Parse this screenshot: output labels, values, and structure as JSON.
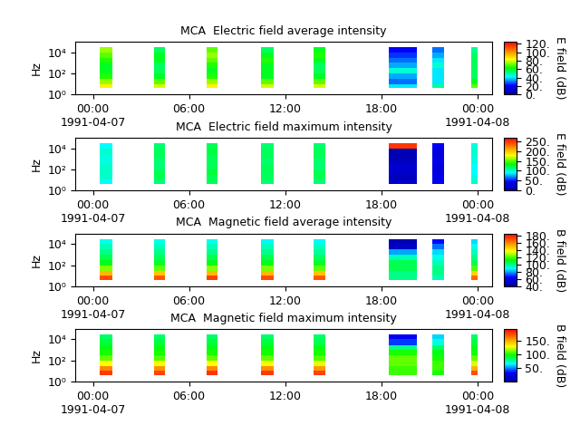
{
  "chart_data": [
    {
      "type": "heatmap",
      "title": "MCA  Electric field average intensity",
      "y_label": "Hz",
      "colorbar_label": "E field (dB)",
      "log": "y",
      "xlim": [
        -1.1,
        24.9
      ],
      "xticks": [
        {
          "value": 0,
          "label": "00:00\n1991-04-07"
        },
        {
          "value": 6,
          "label": "06:00"
        },
        {
          "value": 12,
          "label": "12:00"
        },
        {
          "value": 18,
          "label": "18:00"
        },
        {
          "value": 24,
          "label": "00:00\n1991-04-08"
        }
      ],
      "ylim": [
        1,
        100000
      ],
      "yticks": [
        {
          "value": 1,
          "label": "10⁰"
        },
        {
          "value": 100,
          "label": "10²"
        },
        {
          "value": 10000,
          "label": "10⁴"
        }
      ],
      "time_bands": [
        [
          0.4,
          1.2
        ],
        [
          3.8,
          4.5
        ],
        [
          7.1,
          7.8
        ],
        [
          10.5,
          11.3
        ],
        [
          13.75,
          14.5
        ],
        [
          18.45,
          20.2
        ],
        [
          21.2,
          21.9
        ],
        [
          23.6,
          24.0
        ]
      ],
      "freq_edges": [
        4,
        10,
        30,
        100,
        300,
        1000,
        3000,
        10000,
        30000
      ],
      "cells": [
        [
          85,
          75,
          65,
          60,
          60,
          65,
          70,
          75
        ],
        [
          80,
          70,
          60,
          55,
          55,
          60,
          60,
          55
        ],
        [
          85,
          75,
          65,
          60,
          65,
          70,
          75,
          70
        ],
        [
          80,
          70,
          60,
          60,
          60,
          65,
          60,
          55
        ],
        [
          80,
          70,
          60,
          55,
          55,
          60,
          65,
          60
        ],
        [
          40,
          30,
          35,
          45,
          35,
          30,
          25,
          20
        ],
        [
          50,
          40,
          40,
          40,
          45,
          40,
          35,
          30
        ],
        [
          70,
          60,
          55,
          55,
          55,
          55,
          55,
          50
        ]
      ],
      "color_range": [
        0,
        125
      ],
      "color_ticks": [
        {
          "value": 0,
          "label": "0."
        },
        {
          "value": 20,
          "label": "20."
        },
        {
          "value": 40,
          "label": "40."
        },
        {
          "value": 60,
          "label": "60."
        },
        {
          "value": 80,
          "label": "80."
        },
        {
          "value": 100,
          "label": "100."
        },
        {
          "value": 120,
          "label": "120."
        }
      ]
    },
    {
      "type": "heatmap",
      "title": "MCA  Electric field maximum intensity",
      "y_label": "Hz",
      "colorbar_label": "E field (dB)",
      "log": "y",
      "xlim": [
        -1.1,
        24.9
      ],
      "xticks": [
        {
          "value": 0,
          "label": "00:00\n1991-04-07"
        },
        {
          "value": 6,
          "label": "06:00"
        },
        {
          "value": 12,
          "label": "12:00"
        },
        {
          "value": 18,
          "label": "18:00"
        },
        {
          "value": 24,
          "label": "00:00\n1991-04-08"
        }
      ],
      "ylim": [
        1,
        100000
      ],
      "yticks": [
        {
          "value": 1,
          "label": "10⁰"
        },
        {
          "value": 100,
          "label": "10²"
        },
        {
          "value": 10000,
          "label": "10⁴"
        }
      ],
      "time_bands": [
        [
          0.4,
          1.2
        ],
        [
          3.8,
          4.5
        ],
        [
          7.1,
          7.8
        ],
        [
          10.5,
          11.3
        ],
        [
          13.75,
          14.5
        ],
        [
          18.45,
          20.2
        ],
        [
          21.2,
          21.9
        ],
        [
          23.6,
          24.0
        ]
      ],
      "freq_edges": [
        4,
        10,
        30,
        100,
        300,
        1000,
        3000,
        10000,
        30000
      ],
      "cells": [
        [
          90,
          100,
          100,
          100,
          95,
          95,
          100,
          90
        ],
        [
          115,
          120,
          120,
          115,
          115,
          120,
          120,
          115
        ],
        [
          120,
          120,
          125,
          120,
          120,
          120,
          125,
          120
        ],
        [
          115,
          120,
          120,
          120,
          115,
          120,
          120,
          115
        ],
        [
          115,
          120,
          120,
          115,
          115,
          120,
          120,
          115
        ],
        [
          20,
          15,
          20,
          25,
          15,
          10,
          10,
          250
        ],
        [
          40,
          35,
          30,
          30,
          35,
          30,
          30,
          40
        ],
        [
          100,
          95,
          90,
          90,
          95,
          95,
          100,
          95
        ]
      ],
      "color_range": [
        0,
        270
      ],
      "color_ticks": [
        {
          "value": 0,
          "label": "0."
        },
        {
          "value": 50,
          "label": "50."
        },
        {
          "value": 100,
          "label": "100."
        },
        {
          "value": 150,
          "label": "150."
        },
        {
          "value": 200,
          "label": "200."
        },
        {
          "value": 250,
          "label": "250."
        }
      ]
    },
    {
      "type": "heatmap",
      "title": "MCA  Magnetic field average intensity",
      "y_label": "Hz",
      "colorbar_label": "B field (dB)",
      "log": "y",
      "xlim": [
        -1.1,
        24.9
      ],
      "xticks": [
        {
          "value": 0,
          "label": "00:00\n1991-04-07"
        },
        {
          "value": 6,
          "label": "06:00"
        },
        {
          "value": 12,
          "label": "12:00"
        },
        {
          "value": 18,
          "label": "18:00"
        },
        {
          "value": 24,
          "label": "00:00\n1991-04-08"
        }
      ],
      "ylim": [
        1,
        100000
      ],
      "yticks": [
        {
          "value": 1,
          "label": "10⁰"
        },
        {
          "value": 100,
          "label": "10²"
        },
        {
          "value": 10000,
          "label": "10⁴"
        }
      ],
      "time_bands": [
        [
          0.4,
          1.2
        ],
        [
          3.8,
          4.5
        ],
        [
          7.1,
          7.8
        ],
        [
          10.5,
          11.3
        ],
        [
          13.75,
          14.5
        ],
        [
          18.45,
          20.2
        ],
        [
          21.2,
          21.9
        ],
        [
          23.6,
          24.0
        ]
      ],
      "freq_edges": [
        4,
        10,
        30,
        100,
        300,
        1000,
        3000,
        10000,
        30000
      ],
      "cells": [
        [
          170,
          150,
          125,
          110,
          105,
          100,
          95,
          90
        ],
        [
          168,
          148,
          122,
          108,
          104,
          100,
          95,
          90
        ],
        [
          172,
          150,
          125,
          110,
          105,
          100,
          95,
          90
        ],
        [
          170,
          150,
          124,
          110,
          105,
          100,
          95,
          88
        ],
        [
          168,
          148,
          122,
          108,
          104,
          98,
          94,
          88
        ],
        [
          100,
          100,
          105,
          105,
          95,
          80,
          50,
          45
        ],
        [
          95,
          100,
          100,
          95,
          90,
          85,
          75,
          65
        ],
        [
          165,
          145,
          120,
          105,
          100,
          95,
          90,
          85
        ]
      ],
      "color_range": [
        40,
        185
      ],
      "color_ticks": [
        {
          "value": 40,
          "label": "40."
        },
        {
          "value": 60,
          "label": "60."
        },
        {
          "value": 80,
          "label": "80."
        },
        {
          "value": 100,
          "label": "100."
        },
        {
          "value": 120,
          "label": "120."
        },
        {
          "value": 140,
          "label": "140."
        },
        {
          "value": 160,
          "label": "160."
        },
        {
          "value": 180,
          "label": "180."
        }
      ]
    },
    {
      "type": "heatmap",
      "title": "MCA  Magnetic field maximum intensity",
      "y_label": "Hz",
      "colorbar_label": "B field (dB)",
      "log": "y",
      "xlim": [
        -1.1,
        24.9
      ],
      "xticks": [
        {
          "value": 0,
          "label": "00:00\n1991-04-07"
        },
        {
          "value": 6,
          "label": "06:00"
        },
        {
          "value": 12,
          "label": "12:00"
        },
        {
          "value": 18,
          "label": "18:00"
        },
        {
          "value": 24,
          "label": "00:00\n1991-04-08"
        }
      ],
      "ylim": [
        1,
        100000
      ],
      "yticks": [
        {
          "value": 1,
          "label": "10⁰"
        },
        {
          "value": 100,
          "label": "10²"
        },
        {
          "value": 10000,
          "label": "10⁴"
        }
      ],
      "time_bands": [
        [
          0.4,
          1.2
        ],
        [
          3.8,
          4.5
        ],
        [
          7.1,
          7.8
        ],
        [
          10.5,
          11.3
        ],
        [
          13.75,
          14.5
        ],
        [
          18.45,
          20.2
        ],
        [
          21.2,
          21.9
        ],
        [
          23.6,
          24.0
        ]
      ],
      "freq_edges": [
        4,
        10,
        30,
        100,
        300,
        1000,
        3000,
        10000,
        30000
      ],
      "cells": [
        [
          180,
          160,
          130,
          110,
          100,
          95,
          90,
          85
        ],
        [
          178,
          158,
          128,
          108,
          100,
          95,
          90,
          85
        ],
        [
          182,
          160,
          130,
          110,
          100,
          95,
          90,
          85
        ],
        [
          180,
          158,
          128,
          110,
          100,
          95,
          90,
          84
        ],
        [
          178,
          156,
          126,
          108,
          100,
          94,
          88,
          84
        ],
        [
          105,
          105,
          110,
          110,
          100,
          80,
          40,
          30
        ],
        [
          100,
          105,
          105,
          100,
          95,
          85,
          70,
          60
        ],
        [
          175,
          150,
          125,
          110,
          100,
          95,
          90,
          85
        ]
      ],
      "color_range": [
        0,
        195
      ],
      "color_ticks": [
        {
          "value": 50,
          "label": "50."
        },
        {
          "value": 100,
          "label": "100."
        },
        {
          "value": 150,
          "label": "150."
        }
      ]
    }
  ]
}
